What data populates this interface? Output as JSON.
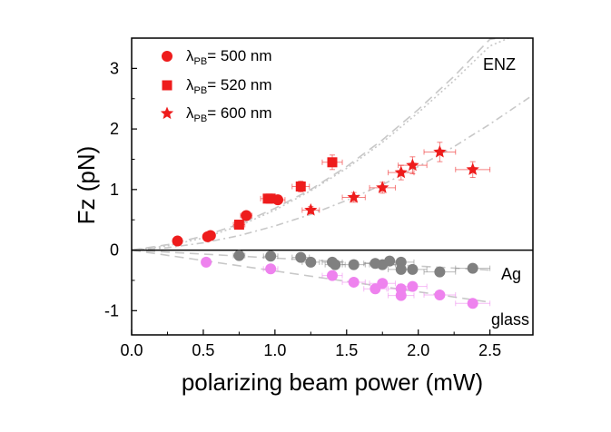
{
  "chart_data": {
    "type": "scatter",
    "xlabel": "polarizing beam power (mW)",
    "ylabel": "Fz (pN)",
    "xlim": [
      0.0,
      2.8
    ],
    "ylim": [
      -1.4,
      3.5
    ],
    "x_ticks": [
      "0.0",
      "0.5",
      "1.0",
      "1.5",
      "2.0",
      "2.5"
    ],
    "y_ticks": [
      "-1",
      "0",
      "1",
      "2",
      "3"
    ],
    "x_tick_values": [
      0.0,
      0.5,
      1.0,
      1.5,
      2.0,
      2.5
    ],
    "y_tick_values": [
      -1,
      0,
      1,
      2,
      3
    ],
    "grid": false,
    "legend": {
      "placement": "top-left",
      "entries": [
        {
          "prefix": "λ",
          "sub": "PB",
          "suffix": "= 500 nm",
          "marker": "circle"
        },
        {
          "prefix": "λ",
          "sub": "PB",
          "suffix": "= 520 nm",
          "marker": "square"
        },
        {
          "prefix": "λ",
          "sub": "PB",
          "suffix": "= 600 nm",
          "marker": "star"
        }
      ]
    },
    "annotations": [
      "ENZ",
      "Ag",
      "glass"
    ],
    "colors": {
      "enz": "#ee1c1c",
      "ag": "#808080",
      "glass": "#ee82ee",
      "fit": "#c8c8c8",
      "zero_line": "#000000"
    },
    "series": [
      {
        "name": "λPB = 500 nm (ENZ)",
        "marker": "circle",
        "color": "#ee1c1c",
        "points": [
          {
            "x": 0.32,
            "y": 0.15,
            "xerr": 0.03,
            "yerr": 0.03
          },
          {
            "x": 0.53,
            "y": 0.22,
            "xerr": 0.03,
            "yerr": 0.03
          },
          {
            "x": 0.55,
            "y": 0.24,
            "xerr": 0.03,
            "yerr": 0.03
          },
          {
            "x": 0.8,
            "y": 0.57,
            "xerr": 0.04,
            "yerr": 0.05
          },
          {
            "x": 1.02,
            "y": 0.83,
            "xerr": 0.05,
            "yerr": 0.06
          }
        ]
      },
      {
        "name": "λPB = 520 nm (ENZ)",
        "marker": "square",
        "color": "#ee1c1c",
        "points": [
          {
            "x": 0.75,
            "y": 0.42,
            "xerr": 0.04,
            "yerr": 0.04
          },
          {
            "x": 0.95,
            "y": 0.85,
            "xerr": 0.05,
            "yerr": 0.07
          },
          {
            "x": 0.97,
            "y": 0.85,
            "xerr": 0.05,
            "yerr": 0.07
          },
          {
            "x": 1.18,
            "y": 1.05,
            "xerr": 0.06,
            "yerr": 0.09
          },
          {
            "x": 1.4,
            "y": 1.45,
            "xerr": 0.07,
            "yerr": 0.12
          }
        ]
      },
      {
        "name": "λPB = 600 nm (ENZ)",
        "marker": "star",
        "color": "#ee1c1c",
        "points": [
          {
            "x": 1.25,
            "y": 0.66,
            "xerr": 0.06,
            "yerr": 0.06
          },
          {
            "x": 1.55,
            "y": 0.87,
            "xerr": 0.08,
            "yerr": 0.08
          },
          {
            "x": 1.75,
            "y": 1.03,
            "xerr": 0.09,
            "yerr": 0.09
          },
          {
            "x": 1.88,
            "y": 1.28,
            "xerr": 0.09,
            "yerr": 0.12
          },
          {
            "x": 1.96,
            "y": 1.4,
            "xerr": 0.1,
            "yerr": 0.14
          },
          {
            "x": 2.15,
            "y": 1.62,
            "xerr": 0.11,
            "yerr": 0.16
          },
          {
            "x": 2.38,
            "y": 1.33,
            "xerr": 0.12,
            "yerr": 0.13
          }
        ]
      },
      {
        "name": "Ag",
        "marker": "circle",
        "color": "#808080",
        "points": [
          {
            "x": 0.75,
            "y": -0.09,
            "xerr": 0.04,
            "yerr": 0.03
          },
          {
            "x": 0.97,
            "y": -0.1,
            "xerr": 0.05,
            "yerr": 0.03
          },
          {
            "x": 1.18,
            "y": -0.12,
            "xerr": 0.06,
            "yerr": 0.03
          },
          {
            "x": 1.25,
            "y": -0.2,
            "xerr": 0.06,
            "yerr": 0.03
          },
          {
            "x": 1.4,
            "y": -0.2,
            "xerr": 0.07,
            "yerr": 0.03
          },
          {
            "x": 1.42,
            "y": -0.24,
            "xerr": 0.07,
            "yerr": 0.03
          },
          {
            "x": 1.55,
            "y": -0.24,
            "xerr": 0.08,
            "yerr": 0.03
          },
          {
            "x": 1.7,
            "y": -0.22,
            "xerr": 0.08,
            "yerr": 0.03
          },
          {
            "x": 1.75,
            "y": -0.24,
            "xerr": 0.09,
            "yerr": 0.03
          },
          {
            "x": 1.8,
            "y": -0.18,
            "xerr": 0.09,
            "yerr": 0.03
          },
          {
            "x": 1.88,
            "y": -0.2,
            "xerr": 0.09,
            "yerr": 0.03
          },
          {
            "x": 1.88,
            "y": -0.32,
            "xerr": 0.09,
            "yerr": 0.03
          },
          {
            "x": 1.96,
            "y": -0.32,
            "xerr": 0.1,
            "yerr": 0.03
          },
          {
            "x": 2.15,
            "y": -0.36,
            "xerr": 0.11,
            "yerr": 0.03
          },
          {
            "x": 2.38,
            "y": -0.3,
            "xerr": 0.12,
            "yerr": 0.03
          }
        ]
      },
      {
        "name": "glass",
        "marker": "circle",
        "color": "#ee82ee",
        "points": [
          {
            "x": 0.52,
            "y": -0.2,
            "xerr": 0.03,
            "yerr": 0.03
          },
          {
            "x": 0.97,
            "y": -0.31,
            "xerr": 0.05,
            "yerr": 0.04
          },
          {
            "x": 1.4,
            "y": -0.42,
            "xerr": 0.07,
            "yerr": 0.04
          },
          {
            "x": 1.55,
            "y": -0.53,
            "xerr": 0.08,
            "yerr": 0.04
          },
          {
            "x": 1.7,
            "y": -0.64,
            "xerr": 0.08,
            "yerr": 0.05
          },
          {
            "x": 1.75,
            "y": -0.55,
            "xerr": 0.09,
            "yerr": 0.05
          },
          {
            "x": 1.88,
            "y": -0.64,
            "xerr": 0.09,
            "yerr": 0.05
          },
          {
            "x": 1.88,
            "y": -0.75,
            "xerr": 0.09,
            "yerr": 0.05
          },
          {
            "x": 1.96,
            "y": -0.6,
            "xerr": 0.1,
            "yerr": 0.05
          },
          {
            "x": 2.15,
            "y": -0.74,
            "xerr": 0.11,
            "yerr": 0.05
          },
          {
            "x": 2.38,
            "y": -0.88,
            "xerr": 0.12,
            "yerr": 0.06
          }
        ]
      }
    ],
    "fits": [
      {
        "name": "fit-500nm",
        "dash": "dash",
        "x": [
          0.0,
          0.25,
          0.5,
          0.75,
          1.0,
          1.25,
          1.5,
          1.75,
          2.0,
          2.25,
          2.5,
          2.56
        ],
        "y": [
          0.0,
          0.09,
          0.23,
          0.43,
          0.69,
          1.0,
          1.38,
          1.82,
          2.32,
          2.87,
          3.48,
          3.5
        ]
      },
      {
        "name": "fit-520nm",
        "dash": "dot",
        "x": [
          0.0,
          0.25,
          0.5,
          0.75,
          1.0,
          1.25,
          1.5,
          1.75,
          2.0,
          2.25,
          2.5,
          2.63
        ],
        "y": [
          0.0,
          0.07,
          0.2,
          0.4,
          0.66,
          0.98,
          1.35,
          1.78,
          2.27,
          2.8,
          3.37,
          3.5
        ]
      },
      {
        "name": "fit-600nm",
        "dash": "dashdot",
        "x": [
          0.0,
          0.25,
          0.5,
          0.75,
          1.0,
          1.25,
          1.5,
          1.75,
          2.0,
          2.25,
          2.5,
          2.8
        ],
        "y": [
          0.0,
          0.04,
          0.12,
          0.24,
          0.4,
          0.59,
          0.82,
          1.08,
          1.38,
          1.71,
          2.08,
          2.56
        ]
      },
      {
        "name": "fit-ag",
        "dash": "dash",
        "x": [
          0.0,
          2.5
        ],
        "y": [
          0.0,
          -0.33
        ]
      },
      {
        "name": "fit-glass",
        "dash": "dash",
        "x": [
          0.0,
          2.5
        ],
        "y": [
          0.0,
          -0.86
        ]
      }
    ]
  }
}
